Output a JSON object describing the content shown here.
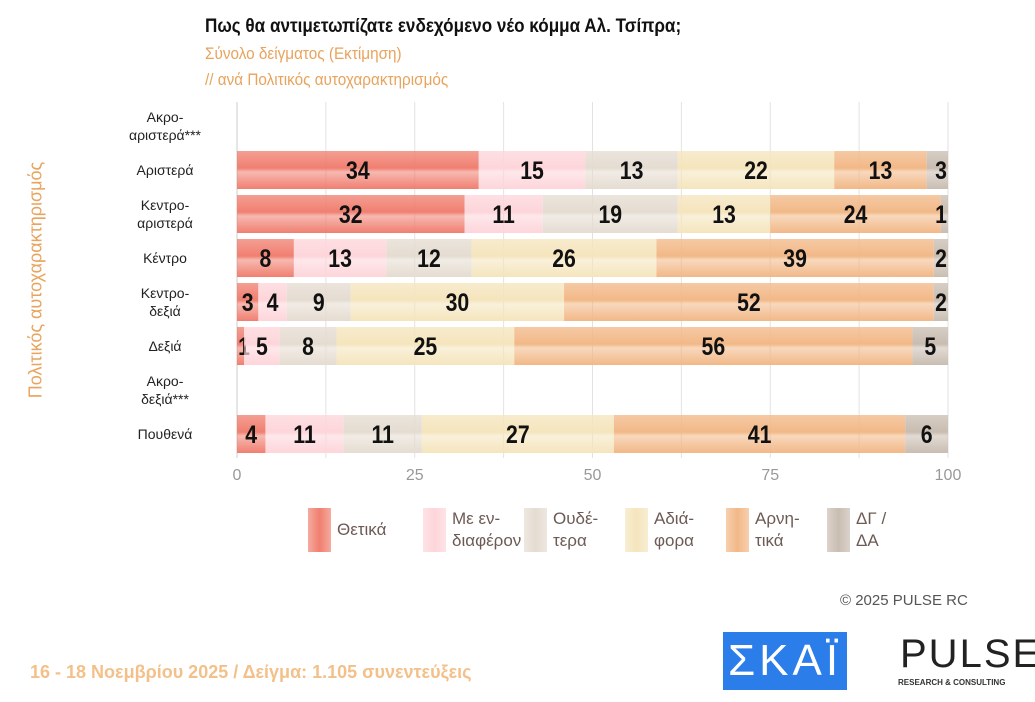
{
  "chart_data": {
    "type": "bar",
    "orientation": "horizontal-stacked",
    "title": "Πως θα αντιμετωπίζατε ενδεχόμενο νέο κόμμα Αλ. Τσίπρα;",
    "subtitle": "Σύνολο δείγματος   (Εκτίμηση)",
    "subtitle2": " // ανά Πολιτικός αυτοχαρακτηρισμός",
    "ylabel": "Πολιτικός αυτοχαρακτηρισμός",
    "xlim": [
      0,
      100
    ],
    "xticks": [
      "0",
      "25",
      "50",
      "75",
      "100"
    ],
    "grid": true,
    "legend_placement": "bottom",
    "categories": [
      "Ακρο-\nαριστερά***",
      "Αριστερά",
      "Κεντρο-\nαριστερά",
      "Κέντρο",
      "Κεντρο-\nδεξιά",
      "Δεξιά",
      "Ακρο-\nδεξιά***",
      "Πουθενά"
    ],
    "series": [
      {
        "name": "Θετικά",
        "legend": "Θετικά",
        "color": "#f07f70",
        "values": [
          null,
          34,
          32,
          8,
          3,
          1,
          null,
          4
        ]
      },
      {
        "name": "Με ενδιαφέρον",
        "legend": "Με εν-\nδιαφέρον",
        "color": "#fdd5da",
        "values": [
          null,
          15,
          11,
          13,
          4,
          5,
          null,
          11
        ]
      },
      {
        "name": "Ουδέτερα",
        "legend": "Ουδέ-\nτερα",
        "color": "#e5dcd1",
        "values": [
          null,
          13,
          19,
          12,
          9,
          8,
          null,
          11
        ]
      },
      {
        "name": "Αδιάφορα",
        "legend": "Αδιά-\nφορα",
        "color": "#f5e5bd",
        "values": [
          null,
          22,
          13,
          26,
          30,
          25,
          null,
          27
        ]
      },
      {
        "name": "Αρνητικά",
        "legend": "Αρνη-\nτικά",
        "color": "#f2b887",
        "values": [
          null,
          13,
          24,
          39,
          52,
          56,
          null,
          41
        ]
      },
      {
        "name": "ΔΓ / ΔΑ",
        "legend": "ΔΓ /\nΔΑ",
        "color": "#c9bdb1",
        "values": [
          null,
          3,
          1,
          2,
          2,
          5,
          null,
          6
        ]
      }
    ]
  },
  "footer": {
    "copyright": "©  2025  PULSE RC",
    "fieldwork": "16 - 18 Νοεμβρίου 2025  /  Δείγμα:  1.105 συνεντεύξεις"
  },
  "logos": {
    "skai": "ΣΚΑΪ",
    "pulse": "PULSE",
    "pulse_sub": "RESEARCH & CONSULTING"
  }
}
